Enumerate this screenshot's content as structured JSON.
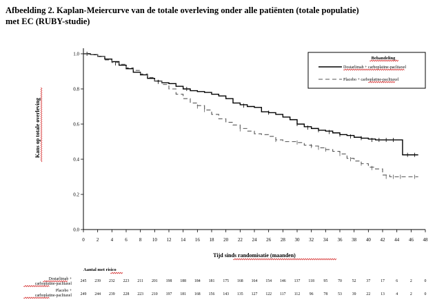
{
  "title_line1": "Afbeelding 2. Kaplan-Meiercurve van de totale overleving onder alle patiënten (totale populatie)",
  "title_line2": "met EC (RUBY-studie)",
  "chart_data": {
    "type": "line",
    "xlabel": "Tijd sinds randomisatie (maanden)",
    "ylabel": "Kans op totale overleving",
    "xlim": [
      0,
      48
    ],
    "ylim": [
      0,
      1.0
    ],
    "xticks": [
      0,
      2,
      4,
      6,
      8,
      10,
      12,
      14,
      16,
      18,
      20,
      22,
      24,
      26,
      28,
      30,
      32,
      34,
      36,
      38,
      40,
      42,
      44,
      46,
      48
    ],
    "yticks": [
      "0.0",
      "0.2",
      "0.4",
      "0.6",
      "0.8",
      "1.0"
    ],
    "legend": {
      "title": "Behandeling",
      "position": "top-right"
    },
    "series": [
      {
        "name": "Dostarlimab + carboplatine-paclitaxel",
        "name_parts": [
          "Dostarlimab + carboplatine",
          "-paclitaxel"
        ],
        "style": "solid",
        "points": [
          [
            0,
            1.0
          ],
          [
            1,
            0.995
          ],
          [
            2,
            0.985
          ],
          [
            3,
            0.97
          ],
          [
            4,
            0.955
          ],
          [
            5,
            0.935
          ],
          [
            6,
            0.915
          ],
          [
            7,
            0.895
          ],
          [
            8,
            0.88
          ],
          [
            9,
            0.86
          ],
          [
            10,
            0.845
          ],
          [
            11,
            0.835
          ],
          [
            12,
            0.83
          ],
          [
            13,
            0.815
          ],
          [
            14,
            0.8
          ],
          [
            15,
            0.79
          ],
          [
            16,
            0.785
          ],
          [
            17,
            0.78
          ],
          [
            18,
            0.77
          ],
          [
            19,
            0.76
          ],
          [
            20,
            0.745
          ],
          [
            21,
            0.72
          ],
          [
            22,
            0.71
          ],
          [
            23,
            0.7
          ],
          [
            24,
            0.695
          ],
          [
            25,
            0.67
          ],
          [
            26,
            0.665
          ],
          [
            27,
            0.655
          ],
          [
            28,
            0.64
          ],
          [
            29,
            0.625
          ],
          [
            30,
            0.6
          ],
          [
            31,
            0.585
          ],
          [
            32,
            0.575
          ],
          [
            33,
            0.565
          ],
          [
            34,
            0.56
          ],
          [
            35,
            0.55
          ],
          [
            36,
            0.54
          ],
          [
            37,
            0.535
          ],
          [
            38,
            0.525
          ],
          [
            39,
            0.52
          ],
          [
            40,
            0.515
          ],
          [
            41,
            0.51
          ],
          [
            42,
            0.51
          ],
          [
            43,
            0.51
          ],
          [
            44,
            0.51
          ],
          [
            44.8,
            0.425
          ],
          [
            47,
            0.425
          ]
        ],
        "censored": [
          [
            0.5,
            1.0
          ],
          [
            4.5,
            0.945
          ],
          [
            10.5,
            0.84
          ],
          [
            14.5,
            0.8
          ],
          [
            22.5,
            0.705
          ],
          [
            26,
            0.665
          ],
          [
            30,
            0.6
          ],
          [
            31.5,
            0.58
          ],
          [
            33,
            0.565
          ],
          [
            34.5,
            0.555
          ],
          [
            36,
            0.54
          ],
          [
            37.5,
            0.53
          ],
          [
            39,
            0.52
          ],
          [
            40.5,
            0.51
          ],
          [
            41.5,
            0.51
          ],
          [
            42.5,
            0.51
          ],
          [
            43.5,
            0.51
          ],
          [
            45.5,
            0.425
          ],
          [
            46.5,
            0.425
          ]
        ]
      },
      {
        "name": "Placebo + carboplatine-paclitaxel",
        "name_parts": [
          "Placebo + ",
          "carboplatine",
          "-paclitaxel"
        ],
        "style": "dashed",
        "points": [
          [
            0,
            1.0
          ],
          [
            1,
            0.995
          ],
          [
            2,
            0.985
          ],
          [
            3,
            0.965
          ],
          [
            4,
            0.95
          ],
          [
            5,
            0.94
          ],
          [
            6,
            0.92
          ],
          [
            7,
            0.905
          ],
          [
            8,
            0.885
          ],
          [
            9,
            0.865
          ],
          [
            10,
            0.845
          ],
          [
            11,
            0.825
          ],
          [
            12,
            0.8
          ],
          [
            13,
            0.77
          ],
          [
            14,
            0.745
          ],
          [
            15,
            0.72
          ],
          [
            16,
            0.705
          ],
          [
            17,
            0.68
          ],
          [
            18,
            0.655
          ],
          [
            19,
            0.63
          ],
          [
            20,
            0.61
          ],
          [
            21,
            0.595
          ],
          [
            22,
            0.575
          ],
          [
            23,
            0.56
          ],
          [
            24,
            0.545
          ],
          [
            25,
            0.54
          ],
          [
            26,
            0.53
          ],
          [
            27,
            0.51
          ],
          [
            28,
            0.5
          ],
          [
            29,
            0.5
          ],
          [
            30,
            0.495
          ],
          [
            31,
            0.48
          ],
          [
            32,
            0.475
          ],
          [
            33,
            0.465
          ],
          [
            34,
            0.455
          ],
          [
            35,
            0.445
          ],
          [
            36,
            0.43
          ],
          [
            37,
            0.405
          ],
          [
            38,
            0.39
          ],
          [
            39,
            0.375
          ],
          [
            40,
            0.355
          ],
          [
            41,
            0.345
          ],
          [
            42,
            0.31
          ],
          [
            43,
            0.3
          ],
          [
            44,
            0.3
          ],
          [
            46,
            0.3
          ],
          [
            47,
            0.3
          ]
        ],
        "censored": [
          [
            16,
            0.7
          ],
          [
            17,
            0.68
          ],
          [
            22,
            0.57
          ],
          [
            27,
            0.51
          ],
          [
            30,
            0.495
          ],
          [
            32,
            0.475
          ],
          [
            33,
            0.465
          ],
          [
            34,
            0.455
          ],
          [
            36,
            0.43
          ],
          [
            37.5,
            0.4
          ],
          [
            39,
            0.375
          ],
          [
            40.5,
            0.35
          ],
          [
            42.5,
            0.3
          ],
          [
            43.5,
            0.3
          ],
          [
            44.5,
            0.3
          ],
          [
            46.5,
            0.3
          ]
        ]
      }
    ],
    "at_risk": {
      "title": "Aantal met risico",
      "rows": [
        {
          "label_parts": [
            "Dostarlimab",
            " +",
            "carboplatine",
            "-paclitaxel"
          ],
          "values": [
            245,
            239,
            232,
            223,
            211,
            201,
            198,
            188,
            184,
            181,
            175,
            168,
            164,
            154,
            146,
            137,
            118,
            95,
            70,
            52,
            37,
            17,
            6,
            2,
            0
          ]
        },
        {
          "label_parts": [
            "Placebo +",
            "carboplatine",
            "-paclitaxel"
          ],
          "values": [
            249,
            244,
            239,
            228,
            223,
            210,
            197,
            181,
            168,
            156,
            143,
            135,
            127,
            122,
            117,
            112,
            96,
            78,
            53,
            39,
            22,
            13,
            4,
            2,
            0
          ]
        }
      ]
    }
  }
}
